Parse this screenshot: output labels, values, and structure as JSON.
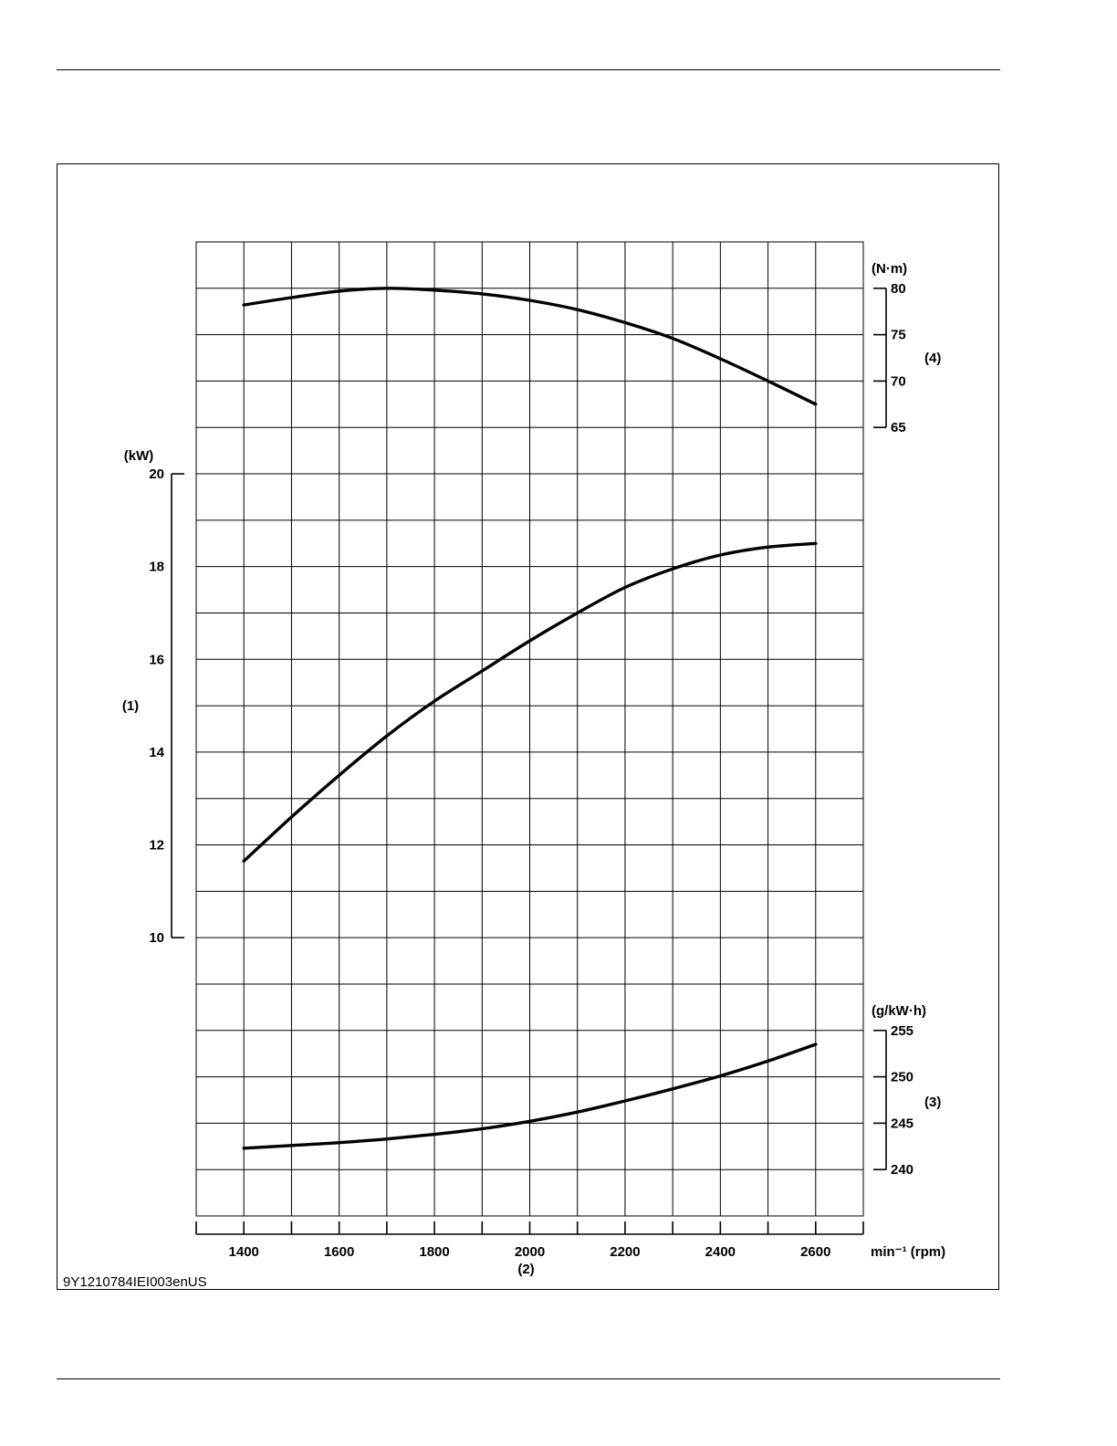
{
  "figure_id": "9Y1210784IEI003enUS",
  "chart_data": {
    "type": "line",
    "xlabel": "(2)",
    "x_unit": "min⁻¹ (rpm)",
    "x_ticks": [
      1400,
      1600,
      1800,
      2000,
      2200,
      2400,
      2600
    ],
    "xlim": [
      1300,
      2700
    ],
    "axes": {
      "power": {
        "label": "(1)",
        "unit": "(kW)",
        "ticks": [
          20,
          18,
          16,
          14,
          12,
          10
        ],
        "ylim": [
          10,
          20
        ]
      },
      "fuel": {
        "label": "(3)",
        "unit": "(g/kW·h)",
        "ticks": [
          255,
          250,
          245,
          240
        ],
        "ylim": [
          240,
          255
        ]
      },
      "torque": {
        "label": "(4)",
        "unit": "(N·m)",
        "ticks": [
          80,
          75,
          70,
          65
        ],
        "ylim": [
          65,
          80
        ]
      }
    },
    "series": [
      {
        "axis": "torque",
        "x": [
          1400,
          1500,
          1600,
          1700,
          1800,
          1900,
          2000,
          2100,
          2200,
          2300,
          2400,
          2500,
          2600
        ],
        "y": [
          78.2,
          79.0,
          79.7,
          80.0,
          79.8,
          79.4,
          78.7,
          77.7,
          76.3,
          74.6,
          72.4,
          70.0,
          67.5
        ]
      },
      {
        "axis": "power",
        "x": [
          1400,
          1500,
          1600,
          1700,
          1800,
          1900,
          2000,
          2100,
          2200,
          2300,
          2400,
          2500,
          2600
        ],
        "y": [
          11.65,
          12.6,
          13.5,
          14.35,
          15.1,
          15.75,
          16.4,
          17.0,
          17.55,
          17.95,
          18.25,
          18.42,
          18.5
        ]
      },
      {
        "axis": "fuel",
        "x": [
          1400,
          1500,
          1600,
          1700,
          1800,
          1900,
          2000,
          2100,
          2200,
          2300,
          2400,
          2500,
          2600
        ],
        "y": [
          242.3,
          242.6,
          242.9,
          243.3,
          243.8,
          244.4,
          245.2,
          246.2,
          247.4,
          248.7,
          250.1,
          251.7,
          253.5
        ]
      }
    ]
  }
}
